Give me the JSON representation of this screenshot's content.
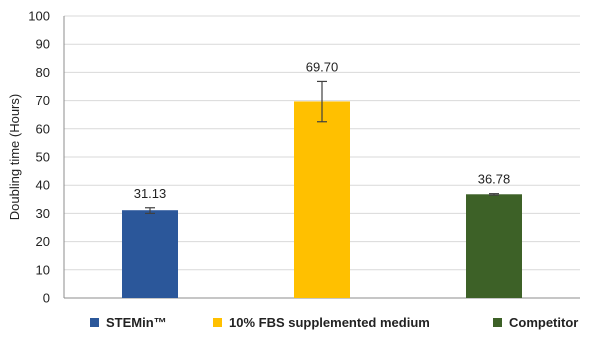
{
  "chart_data": {
    "type": "bar",
    "title": "",
    "xlabel": "",
    "ylabel": "Doubling time (Hours)",
    "ylim": [
      0,
      100
    ],
    "yticks": [
      0,
      10,
      20,
      30,
      40,
      50,
      60,
      70,
      80,
      90,
      100
    ],
    "grid": true,
    "legend_position": "bottom",
    "categories": [
      "STEMin™",
      "10% FBS supplemented medium",
      "Competitor"
    ],
    "values": [
      31.13,
      69.7,
      36.78
    ],
    "value_labels": [
      "31.13",
      "69.70",
      "36.78"
    ],
    "error_low": [
      30.0,
      62.5,
      36.5
    ],
    "error_high": [
      32.0,
      76.8,
      37.0
    ],
    "colors": [
      "#2B579A",
      "#FFC000",
      "#3D6127"
    ],
    "tick_labels": [
      "0",
      "10",
      "20",
      "30",
      "40",
      "50",
      "60",
      "70",
      "80",
      "90",
      "100"
    ]
  }
}
